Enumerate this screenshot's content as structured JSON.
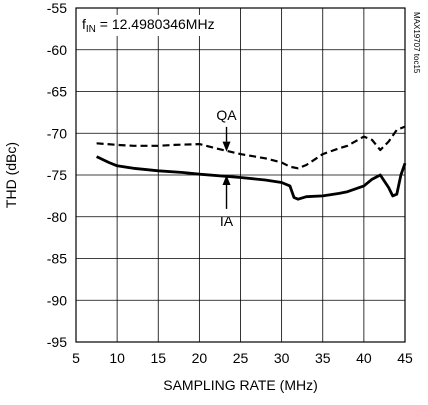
{
  "chart_data": {
    "type": "line",
    "title": "",
    "xlabel": "SAMPLING RATE (MHz)",
    "ylabel": "THD (dBc)",
    "xlim": [
      5,
      45
    ],
    "ylim": [
      -95,
      -55
    ],
    "xticks": [
      5,
      10,
      15,
      20,
      25,
      30,
      35,
      40,
      45
    ],
    "yticks": [
      -55,
      -60,
      -65,
      -70,
      -75,
      -80,
      -85,
      -90,
      -95
    ],
    "grid": true,
    "legend": "none",
    "condition_label": {
      "prefix": "f",
      "subscript": "IN",
      "text": " = 12.4980346MHz"
    },
    "figure_id": "MAX19707 toc15",
    "series": [
      {
        "name": "QA",
        "style": "dashed",
        "color": "#000000",
        "x": [
          7.5,
          10,
          12,
          15,
          17,
          20,
          22,
          25,
          28,
          30,
          31,
          32,
          33,
          35,
          37,
          38,
          40,
          41,
          42,
          43,
          44,
          45
        ],
        "y": [
          -71.2,
          -71.4,
          -71.5,
          -71.5,
          -71.4,
          -71.3,
          -71.8,
          -72.5,
          -73.0,
          -73.5,
          -74.0,
          -74.2,
          -73.8,
          -72.5,
          -71.8,
          -71.5,
          -70.4,
          -70.8,
          -72.0,
          -71.0,
          -69.6,
          -69.2
        ]
      },
      {
        "name": "IA",
        "style": "solid",
        "color": "#000000",
        "x": [
          7.5,
          9,
          10,
          12,
          15,
          18,
          20,
          25,
          28,
          30,
          31,
          31.5,
          32,
          33,
          35,
          37,
          38,
          40,
          41,
          42,
          43,
          43.5,
          44,
          44.5,
          45
        ],
        "y": [
          -72.8,
          -73.5,
          -73.9,
          -74.2,
          -74.5,
          -74.7,
          -74.9,
          -75.3,
          -75.6,
          -75.9,
          -76.3,
          -77.7,
          -77.9,
          -77.6,
          -77.5,
          -77.2,
          -77.0,
          -76.3,
          -75.5,
          -75.0,
          -76.5,
          -77.5,
          -77.3,
          -75.0,
          -73.6
        ]
      }
    ],
    "annotations": [
      {
        "text": "QA",
        "target_x": 23.3,
        "target_y": -72.2,
        "text_x": 23.3,
        "text_y": -67.8,
        "direction": "down"
      },
      {
        "text": "IA",
        "target_x": 23.3,
        "target_y": -75.0,
        "text_x": 23.3,
        "text_y": -80.5,
        "direction": "up"
      }
    ]
  }
}
